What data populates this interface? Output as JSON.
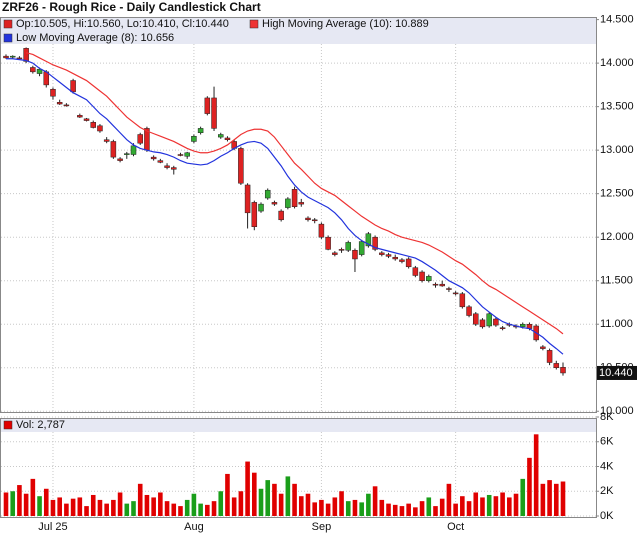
{
  "chart_data": [
    {
      "type": "candlestick",
      "title": "ZRF26 - Rough Rice - Daily Candlestick Chart",
      "series": [
        {
          "name": "Op:10.505, Hi:10.560, Lo:10.410, Cl:10.440",
          "color": "#dd2222",
          "up_color": "#33aa33",
          "type": "candlestick",
          "open": [
            14.08,
            14.07,
            14.06,
            14.17,
            13.95,
            13.88,
            13.9,
            13.7,
            13.55,
            13.52,
            13.8,
            13.4,
            13.36,
            13.32,
            13.28,
            13.12,
            13.1,
            12.9,
            12.95,
            12.95,
            13.18,
            13.25,
            12.92,
            12.88,
            12.82,
            12.8,
            12.95,
            12.93,
            13.1,
            13.2,
            13.6,
            13.6,
            13.15,
            13.14,
            13.1,
            13.02,
            12.6,
            12.4,
            12.3,
            12.45,
            12.4,
            12.3,
            12.34,
            12.55,
            12.4,
            12.22,
            12.2,
            12.15,
            12.0,
            11.82,
            11.86,
            11.85,
            11.85,
            11.8,
            11.9,
            12.0,
            11.82,
            11.8,
            11.77,
            11.74,
            11.75,
            11.65,
            11.6,
            11.5,
            11.46,
            11.46,
            11.41,
            11.36,
            11.35,
            11.2,
            11.12,
            11.05,
            10.98,
            11.06,
            10.96,
            11.0,
            10.98,
            10.97,
            11.0,
            10.98,
            10.74,
            10.7,
            10.55,
            10.505
          ],
          "high": [
            14.1,
            14.09,
            14.08,
            14.18,
            13.97,
            13.95,
            13.92,
            13.72,
            13.58,
            13.54,
            13.82,
            13.42,
            13.37,
            13.34,
            13.3,
            13.15,
            13.12,
            12.92,
            12.98,
            13.08,
            13.2,
            13.27,
            12.94,
            12.9,
            12.85,
            12.82,
            12.97,
            12.98,
            13.18,
            13.27,
            13.62,
            13.73,
            13.2,
            13.16,
            13.12,
            13.04,
            12.62,
            12.42,
            12.4,
            12.56,
            12.42,
            12.32,
            12.46,
            12.58,
            12.44,
            12.24,
            12.22,
            12.17,
            12.02,
            11.84,
            11.88,
            11.96,
            11.87,
            11.97,
            12.06,
            12.02,
            11.84,
            11.82,
            11.8,
            11.76,
            11.77,
            11.67,
            11.62,
            11.57,
            11.48,
            11.5,
            11.43,
            11.38,
            11.37,
            11.22,
            11.14,
            11.07,
            11.14,
            11.08,
            10.98,
            11.02,
            11.0,
            11.02,
            11.02,
            11.0,
            10.76,
            10.72,
            10.58,
            10.56
          ],
          "low": [
            14.05,
            14.05,
            14.04,
            14.0,
            13.88,
            13.85,
            13.72,
            13.58,
            13.52,
            13.5,
            13.65,
            13.37,
            13.33,
            13.25,
            13.2,
            13.08,
            12.9,
            12.86,
            12.9,
            12.93,
            13.06,
            12.98,
            12.88,
            12.85,
            12.78,
            12.72,
            12.93,
            12.9,
            13.08,
            13.18,
            13.4,
            13.22,
            13.13,
            13.1,
            13.0,
            12.6,
            12.1,
            12.08,
            12.28,
            12.43,
            12.36,
            12.18,
            12.32,
            12.33,
            12.35,
            12.18,
            12.16,
            11.98,
            11.85,
            11.78,
            11.82,
            11.83,
            11.6,
            11.78,
            11.88,
            11.84,
            11.78,
            11.76,
            11.73,
            11.7,
            11.64,
            11.54,
            11.48,
            11.48,
            11.42,
            11.43,
            11.37,
            11.33,
            11.18,
            11.08,
            10.98,
            10.95,
            10.96,
            10.97,
            10.93,
            10.97,
            10.95,
            10.95,
            10.93,
            10.8,
            10.7,
            10.53,
            10.48,
            10.41
          ],
          "close": [
            14.06,
            14.08,
            14.05,
            14.02,
            13.9,
            13.93,
            13.75,
            13.62,
            13.53,
            13.51,
            13.67,
            13.38,
            13.34,
            13.26,
            13.22,
            13.1,
            12.92,
            12.88,
            12.96,
            13.05,
            13.08,
            13.0,
            12.9,
            12.86,
            12.8,
            12.78,
            12.94,
            12.97,
            13.16,
            13.25,
            13.42,
            13.25,
            13.18,
            13.12,
            13.02,
            12.62,
            12.28,
            12.12,
            12.38,
            12.54,
            12.38,
            12.2,
            12.44,
            12.35,
            12.38,
            12.2,
            12.19,
            12.0,
            11.86,
            11.8,
            11.85,
            11.94,
            11.75,
            11.95,
            12.04,
            11.86,
            11.8,
            11.78,
            11.75,
            11.72,
            11.66,
            11.56,
            11.5,
            11.55,
            11.45,
            11.44,
            11.4,
            11.35,
            11.2,
            11.1,
            11.0,
            10.97,
            11.12,
            10.99,
            10.95,
            10.99,
            10.97,
            11.0,
            10.95,
            10.82,
            10.72,
            10.56,
            10.5,
            10.44
          ],
          "last_value_label": "10.440"
        },
        {
          "name": "High Moving Average (10): 10.889",
          "color": "#ee3333",
          "type": "line",
          "values": [
            null,
            null,
            null,
            14.12,
            14.1,
            14.06,
            14.02,
            13.98,
            13.95,
            13.92,
            13.88,
            13.84,
            13.8,
            13.74,
            13.68,
            13.62,
            13.54,
            13.46,
            13.38,
            13.32,
            13.26,
            13.22,
            13.19,
            13.16,
            13.13,
            13.1,
            13.06,
            13.02,
            12.99,
            12.97,
            12.97,
            12.99,
            13.02,
            13.06,
            13.12,
            13.18,
            13.22,
            13.24,
            13.24,
            13.22,
            13.15,
            13.05,
            12.95,
            12.85,
            12.78,
            12.7,
            12.62,
            12.56,
            12.52,
            12.48,
            12.42,
            12.36,
            12.3,
            12.24,
            12.19,
            12.14,
            12.1,
            12.07,
            12.03,
            12.0,
            11.98,
            11.96,
            11.94,
            11.91,
            11.87,
            11.83,
            11.78,
            11.73,
            11.69,
            11.63,
            11.57,
            11.5,
            11.44,
            11.4,
            11.35,
            11.3,
            11.25,
            11.2,
            11.15,
            11.1,
            11.05,
            11.0,
            10.95,
            10.889
          ]
        },
        {
          "name": "Low Moving Average (8): 10.656",
          "color": "#2233dd",
          "type": "line",
          "values": [
            14.05,
            14.05,
            14.04,
            14.03,
            14.0,
            13.94,
            13.9,
            13.84,
            13.78,
            13.72,
            13.66,
            13.62,
            13.58,
            13.5,
            13.42,
            13.36,
            13.28,
            13.2,
            13.12,
            13.06,
            13.02,
            13.0,
            12.98,
            12.97,
            12.95,
            12.92,
            12.88,
            12.85,
            12.84,
            12.83,
            12.84,
            12.88,
            12.93,
            12.97,
            13.02,
            13.06,
            13.09,
            13.1,
            13.08,
            13.02,
            12.92,
            12.82,
            12.7,
            12.6,
            12.52,
            12.46,
            12.42,
            12.38,
            12.34,
            12.28,
            12.2,
            12.1,
            12.02,
            11.96,
            11.92,
            11.88,
            11.86,
            11.84,
            11.82,
            11.8,
            11.78,
            11.76,
            11.72,
            11.67,
            11.62,
            11.56,
            11.5,
            11.46,
            11.42,
            11.36,
            11.28,
            11.2,
            11.14,
            11.08,
            11.03,
            11.0,
            10.98,
            10.96,
            10.95,
            10.9,
            10.85,
            10.78,
            10.72,
            10.656
          ]
        }
      ],
      "ylim": [
        9.98,
        14.53
      ],
      "yticks": [
        {
          "value": 10.0,
          "label": "10.000"
        },
        {
          "value": 10.5,
          "label": "10.500"
        },
        {
          "value": 11.0,
          "label": "11.000"
        },
        {
          "value": 11.5,
          "label": "11.500"
        },
        {
          "value": 12.0,
          "label": "12.000"
        },
        {
          "value": 12.5,
          "label": "12.500"
        },
        {
          "value": 13.0,
          "label": "13.000"
        },
        {
          "value": 13.5,
          "label": "13.500"
        },
        {
          "value": 14.0,
          "label": "14.000"
        },
        {
          "value": 14.5,
          "label": "14.500"
        }
      ],
      "grid": true
    },
    {
      "type": "bar",
      "categories": [
        null,
        null,
        null,
        null,
        null,
        null,
        null,
        "Jul 25",
        null,
        null,
        null,
        null,
        null,
        null,
        null,
        null,
        null,
        null,
        null,
        null,
        null,
        null,
        null,
        null,
        null,
        null,
        null,
        null,
        "Aug",
        null,
        null,
        null,
        null,
        null,
        null,
        null,
        null,
        null,
        null,
        null,
        null,
        null,
        null,
        null,
        null,
        null,
        null,
        "Sep",
        null,
        null,
        null,
        null,
        null,
        null,
        null,
        null,
        null,
        null,
        null,
        null,
        null,
        null,
        null,
        null,
        null,
        null,
        null,
        "Oct",
        null,
        null,
        null,
        null,
        null,
        null,
        null,
        null,
        null,
        null,
        null,
        null,
        null,
        null,
        null,
        null
      ],
      "series": [
        {
          "name": "Vol: 2,787",
          "color": "#e00000",
          "up_color": "#1a9e1a",
          "values": [
            1900,
            2000,
            2500,
            1800,
            3000,
            1600,
            2200,
            1300,
            1500,
            1000,
            1400,
            1500,
            800,
            1700,
            1300,
            1000,
            1300,
            1900,
            1000,
            1200,
            2600,
            1700,
            1500,
            1900,
            1200,
            1000,
            800,
            1300,
            1800,
            1000,
            900,
            1200,
            2000,
            3400,
            1500,
            2000,
            4400,
            3500,
            2200,
            2900,
            2600,
            1800,
            3200,
            2600,
            1600,
            1800,
            1100,
            1300,
            1000,
            1500,
            2000,
            1200,
            1300,
            1100,
            1800,
            2400,
            1300,
            1000,
            900,
            800,
            1000,
            700,
            1200,
            1500,
            800,
            1400,
            2600,
            1000,
            1600,
            1200,
            1900,
            1500,
            1700,
            1600,
            1900,
            1500,
            1800,
            3000,
            4700,
            6600,
            2600,
            2900,
            2600,
            2787
          ]
        }
      ],
      "ylim": [
        0,
        8000
      ],
      "yticks": [
        {
          "value": 0,
          "label": "0K"
        },
        {
          "value": 2000,
          "label": "2K"
        },
        {
          "value": 4000,
          "label": "4K"
        },
        {
          "value": 6000,
          "label": "6K"
        },
        {
          "value": 8000,
          "label": "8K"
        }
      ],
      "grid": true
    }
  ]
}
